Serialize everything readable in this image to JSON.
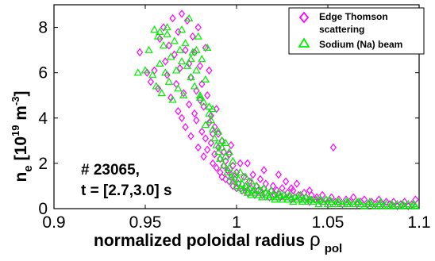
{
  "chart_data": {
    "type": "scatter",
    "xlabel": "normalized poloidal radius",
    "xlabel_symbol": "ρ",
    "xlabel_sub": "pol",
    "ylabel_main": "n",
    "ylabel_sub": "e",
    "ylabel_unit": "[10",
    "ylabel_exp": "19",
    "ylabel_unit2": " m",
    "ylabel_exp2": "-3",
    "ylabel_close": "]",
    "xlim": [
      0.9,
      1.1
    ],
    "ylim": [
      0,
      9
    ],
    "x_ticks": [
      "0.9",
      "0.95",
      "1",
      "1.05",
      "1.1"
    ],
    "x_tick_values": [
      0.9,
      0.95,
      1.0,
      1.05,
      1.1
    ],
    "y_ticks": [
      "0",
      "2",
      "4",
      "6",
      "8"
    ],
    "y_tick_values": [
      0,
      2,
      4,
      6,
      8
    ],
    "grid": false,
    "legend_position": "top-right",
    "annotation_line1": "# 23065,",
    "annotation_line2": "t = [2.7,3.0] s",
    "series": [
      {
        "name": "Edge Thomson scattering",
        "marker": "diamond",
        "color": "#ff00ff",
        "points": [
          [
            0.947,
            6.9
          ],
          [
            0.951,
            6.0
          ],
          [
            0.953,
            5.6
          ],
          [
            0.955,
            6.1
          ],
          [
            0.957,
            5.3
          ],
          [
            0.958,
            7.5
          ],
          [
            0.96,
            8.0
          ],
          [
            0.961,
            6.5
          ],
          [
            0.962,
            5.9
          ],
          [
            0.963,
            7.2
          ],
          [
            0.964,
            4.9
          ],
          [
            0.965,
            8.4
          ],
          [
            0.966,
            6.8
          ],
          [
            0.967,
            5.5
          ],
          [
            0.968,
            7.8
          ],
          [
            0.968,
            4.3
          ],
          [
            0.969,
            6.2
          ],
          [
            0.97,
            8.6
          ],
          [
            0.97,
            4.0
          ],
          [
            0.971,
            5.1
          ],
          [
            0.972,
            7.0
          ],
          [
            0.972,
            3.6
          ],
          [
            0.973,
            8.3
          ],
          [
            0.974,
            6.4
          ],
          [
            0.974,
            4.6
          ],
          [
            0.975,
            5.8
          ],
          [
            0.975,
            3.2
          ],
          [
            0.976,
            7.6
          ],
          [
            0.977,
            4.2
          ],
          [
            0.977,
            6.9
          ],
          [
            0.978,
            3.9
          ],
          [
            0.978,
            5.2
          ],
          [
            0.979,
            8.0
          ],
          [
            0.979,
            2.7
          ],
          [
            0.98,
            4.8
          ],
          [
            0.98,
            6.3
          ],
          [
            0.981,
            3.4
          ],
          [
            0.981,
            5.5
          ],
          [
            0.982,
            2.3
          ],
          [
            0.982,
            4.5
          ],
          [
            0.983,
            7.1
          ],
          [
            0.983,
            3.1
          ],
          [
            0.984,
            5.0
          ],
          [
            0.984,
            2.6
          ],
          [
            0.985,
            3.8
          ],
          [
            0.985,
            6.1
          ],
          [
            0.986,
            2.9
          ],
          [
            0.986,
            4.1
          ],
          [
            0.987,
            3.3
          ],
          [
            0.987,
            2.0
          ],
          [
            0.988,
            3.6
          ],
          [
            0.988,
            2.4
          ],
          [
            0.989,
            4.4
          ],
          [
            0.989,
            1.8
          ],
          [
            0.99,
            2.7
          ],
          [
            0.99,
            3.3
          ],
          [
            0.991,
            1.6
          ],
          [
            0.991,
            2.2
          ],
          [
            0.992,
            3.0
          ],
          [
            0.992,
            1.4
          ],
          [
            0.993,
            2.5
          ],
          [
            0.993,
            1.9
          ],
          [
            0.994,
            1.3
          ],
          [
            0.994,
            2.1
          ],
          [
            0.995,
            1.7
          ],
          [
            0.996,
            1.2
          ],
          [
            0.996,
            2.4
          ],
          [
            0.997,
            1.5
          ],
          [
            0.998,
            1.0
          ],
          [
            0.998,
            1.9
          ],
          [
            0.999,
            1.3
          ],
          [
            1.0,
            0.9
          ],
          [
            1.0,
            1.6
          ],
          [
            1.001,
            1.1
          ],
          [
            1.002,
            2.0
          ],
          [
            1.003,
            0.8
          ],
          [
            1.004,
            1.4
          ],
          [
            1.005,
            1.0
          ],
          [
            1.006,
            0.7
          ],
          [
            1.007,
            1.2
          ],
          [
            1.008,
            0.9
          ],
          [
            1.009,
            1.5
          ],
          [
            1.01,
            0.6
          ],
          [
            1.011,
            1.0
          ],
          [
            1.012,
            0.8
          ],
          [
            1.013,
            1.3
          ],
          [
            1.014,
            0.6
          ],
          [
            1.015,
            0.9
          ],
          [
            1.016,
            1.1
          ],
          [
            1.018,
            0.5
          ],
          [
            1.019,
            0.8
          ],
          [
            1.02,
            1.0
          ],
          [
            1.021,
            0.6
          ],
          [
            1.022,
            0.8
          ],
          [
            1.024,
            0.5
          ],
          [
            1.025,
            0.9
          ],
          [
            1.026,
            0.6
          ],
          [
            1.028,
            0.7
          ],
          [
            1.03,
            0.4
          ],
          [
            1.031,
            0.8
          ],
          [
            1.032,
            0.5
          ],
          [
            1.034,
            0.6
          ],
          [
            1.035,
            0.4
          ],
          [
            1.037,
            0.7
          ],
          [
            1.038,
            0.5
          ],
          [
            1.04,
            0.3
          ],
          [
            1.041,
            0.6
          ],
          [
            1.043,
            0.4
          ],
          [
            1.044,
            0.5
          ],
          [
            1.046,
            0.3
          ],
          [
            1.047,
            0.6
          ],
          [
            1.049,
            0.4
          ],
          [
            1.05,
            0.3
          ],
          [
            1.052,
            0.5
          ],
          [
            1.053,
            2.7
          ],
          [
            1.054,
            0.3
          ],
          [
            1.056,
            0.4
          ],
          [
            1.058,
            0.2
          ],
          [
            1.06,
            0.4
          ],
          [
            1.062,
            0.3
          ],
          [
            1.064,
            0.5
          ],
          [
            1.066,
            0.2
          ],
          [
            1.068,
            0.3
          ],
          [
            1.07,
            0.4
          ],
          [
            1.072,
            0.2
          ],
          [
            1.074,
            0.3
          ],
          [
            1.076,
            0.2
          ],
          [
            1.078,
            0.4
          ],
          [
            1.08,
            0.2
          ],
          [
            1.082,
            0.3
          ],
          [
            1.084,
            0.2
          ],
          [
            1.086,
            0.3
          ],
          [
            1.088,
            0.1
          ],
          [
            1.09,
            0.2
          ],
          [
            1.092,
            0.3
          ],
          [
            1.094,
            0.1
          ],
          [
            1.096,
            0.2
          ],
          [
            1.098,
            0.4
          ],
          [
            1.023,
            1.5
          ],
          [
            1.027,
            1.2
          ],
          [
            1.033,
            1.1
          ],
          [
            1.015,
            1.7
          ],
          [
            1.006,
            2.0
          ],
          [
            0.997,
            2.8
          ],
          [
            1.03,
            0.9
          ],
          [
            1.04,
            0.8
          ]
        ]
      },
      {
        "name": "Sodium (Na) beam",
        "marker": "triangle",
        "color": "#00ee00",
        "points": [
          [
            0.946,
            6.0
          ],
          [
            0.95,
            6.1
          ],
          [
            0.952,
            7.0
          ],
          [
            0.954,
            5.9
          ],
          [
            0.955,
            7.9
          ],
          [
            0.956,
            5.4
          ],
          [
            0.957,
            7.6
          ],
          [
            0.958,
            6.4
          ],
          [
            0.959,
            5.1
          ],
          [
            0.96,
            7.2
          ],
          [
            0.961,
            6.0
          ],
          [
            0.962,
            7.7
          ],
          [
            0.963,
            5.6
          ],
          [
            0.964,
            6.7
          ],
          [
            0.965,
            4.8
          ],
          [
            0.966,
            7.4
          ],
          [
            0.967,
            6.1
          ],
          [
            0.968,
            5.3
          ],
          [
            0.969,
            7.0
          ],
          [
            0.97,
            6.5
          ],
          [
            0.971,
            5.0
          ],
          [
            0.972,
            7.3
          ],
          [
            0.973,
            6.3
          ],
          [
            0.974,
            8.4
          ],
          [
            0.975,
            5.8
          ],
          [
            0.976,
            6.9
          ],
          [
            0.977,
            5.4
          ],
          [
            0.978,
            6.1
          ],
          [
            0.979,
            7.6
          ],
          [
            0.98,
            5.0
          ],
          [
            0.981,
            6.6
          ],
          [
            0.982,
            4.7
          ],
          [
            0.983,
            5.7
          ],
          [
            0.984,
            7.1
          ],
          [
            0.985,
            4.5
          ],
          [
            0.986,
            3.9
          ],
          [
            0.987,
            3.5
          ],
          [
            0.988,
            3.1
          ],
          [
            0.989,
            2.8
          ],
          [
            0.99,
            2.5
          ],
          [
            0.991,
            2.2
          ],
          [
            0.992,
            2.7
          ],
          [
            0.993,
            1.9
          ],
          [
            0.994,
            2.3
          ],
          [
            0.995,
            1.6
          ],
          [
            0.996,
            1.8
          ],
          [
            0.997,
            1.4
          ],
          [
            0.998,
            1.2
          ],
          [
            0.999,
            1.5
          ],
          [
            1.0,
            1.0
          ],
          [
            1.001,
            1.3
          ],
          [
            1.002,
            0.9
          ],
          [
            1.003,
            1.1
          ],
          [
            1.004,
            0.8
          ],
          [
            1.005,
            1.0
          ],
          [
            1.006,
            0.7
          ],
          [
            1.007,
            0.9
          ],
          [
            1.008,
            0.6
          ],
          [
            1.009,
            0.8
          ],
          [
            1.01,
            0.7
          ],
          [
            1.012,
            0.6
          ],
          [
            1.013,
            0.8
          ],
          [
            1.014,
            0.5
          ],
          [
            1.016,
            0.7
          ],
          [
            1.017,
            0.6
          ],
          [
            1.018,
            0.5
          ],
          [
            1.02,
            0.6
          ],
          [
            1.021,
            0.4
          ],
          [
            1.022,
            0.5
          ],
          [
            1.024,
            0.6
          ],
          [
            1.025,
            0.4
          ],
          [
            1.027,
            0.5
          ],
          [
            1.028,
            0.4
          ],
          [
            1.03,
            0.5
          ],
          [
            1.031,
            0.3
          ],
          [
            1.033,
            0.4
          ],
          [
            1.034,
            0.5
          ],
          [
            1.036,
            0.3
          ],
          [
            1.037,
            0.4
          ],
          [
            1.039,
            0.3
          ],
          [
            1.04,
            0.4
          ],
          [
            1.042,
            0.3
          ],
          [
            1.044,
            0.4
          ],
          [
            1.045,
            0.2
          ],
          [
            1.047,
            0.3
          ],
          [
            1.049,
            0.4
          ],
          [
            1.05,
            0.2
          ],
          [
            1.052,
            0.3
          ],
          [
            1.054,
            0.2
          ],
          [
            1.056,
            0.3
          ],
          [
            1.058,
            0.2
          ],
          [
            1.06,
            0.3
          ],
          [
            1.062,
            0.2
          ],
          [
            1.064,
            0.2
          ],
          [
            1.066,
            0.3
          ],
          [
            1.068,
            0.2
          ],
          [
            1.07,
            0.1
          ],
          [
            1.072,
            0.2
          ],
          [
            1.074,
            0.2
          ],
          [
            1.076,
            0.1
          ],
          [
            1.078,
            0.2
          ],
          [
            1.08,
            0.1
          ],
          [
            1.082,
            0.2
          ],
          [
            1.084,
            0.1
          ],
          [
            1.086,
            0.1
          ],
          [
            1.088,
            0.2
          ],
          [
            1.09,
            0.1
          ],
          [
            1.092,
            0.1
          ],
          [
            1.094,
            0.2
          ],
          [
            1.096,
            0.1
          ],
          [
            1.098,
            0.1
          ],
          [
            0.99,
            3.4
          ],
          [
            0.992,
            3.0
          ],
          [
            0.994,
            2.9
          ],
          [
            0.996,
            2.5
          ],
          [
            0.998,
            2.1
          ],
          [
            0.985,
            4.2
          ],
          [
            0.983,
            3.7
          ],
          [
            0.987,
            4.4
          ],
          [
            0.98,
            4.9
          ],
          [
            0.978,
            7.0
          ],
          [
            0.975,
            6.6
          ],
          [
            0.97,
            7.9
          ],
          [
            0.962,
            8.0
          ],
          [
            0.958,
            7.8
          ],
          [
            1.002,
            1.6
          ],
          [
            1.005,
            1.4
          ],
          [
            1.008,
            1.2
          ],
          [
            1.011,
            1.0
          ],
          [
            1.015,
            0.9
          ],
          [
            1.019,
            0.8
          ],
          [
            1.023,
            0.7
          ],
          [
            1.026,
            0.6
          ],
          [
            1.029,
            0.6
          ],
          [
            1.032,
            0.5
          ],
          [
            1.035,
            0.6
          ],
          [
            1.038,
            0.5
          ],
          [
            1.041,
            0.4
          ],
          [
            1.046,
            0.4
          ],
          [
            1.051,
            0.4
          ],
          [
            1.055,
            0.3
          ],
          [
            1.061,
            0.3
          ],
          [
            1.067,
            0.3
          ],
          [
            1.073,
            0.3
          ],
          [
            1.079,
            0.3
          ],
          [
            1.085,
            0.2
          ],
          [
            1.091,
            0.2
          ],
          [
            1.097,
            0.2
          ]
        ]
      }
    ]
  }
}
